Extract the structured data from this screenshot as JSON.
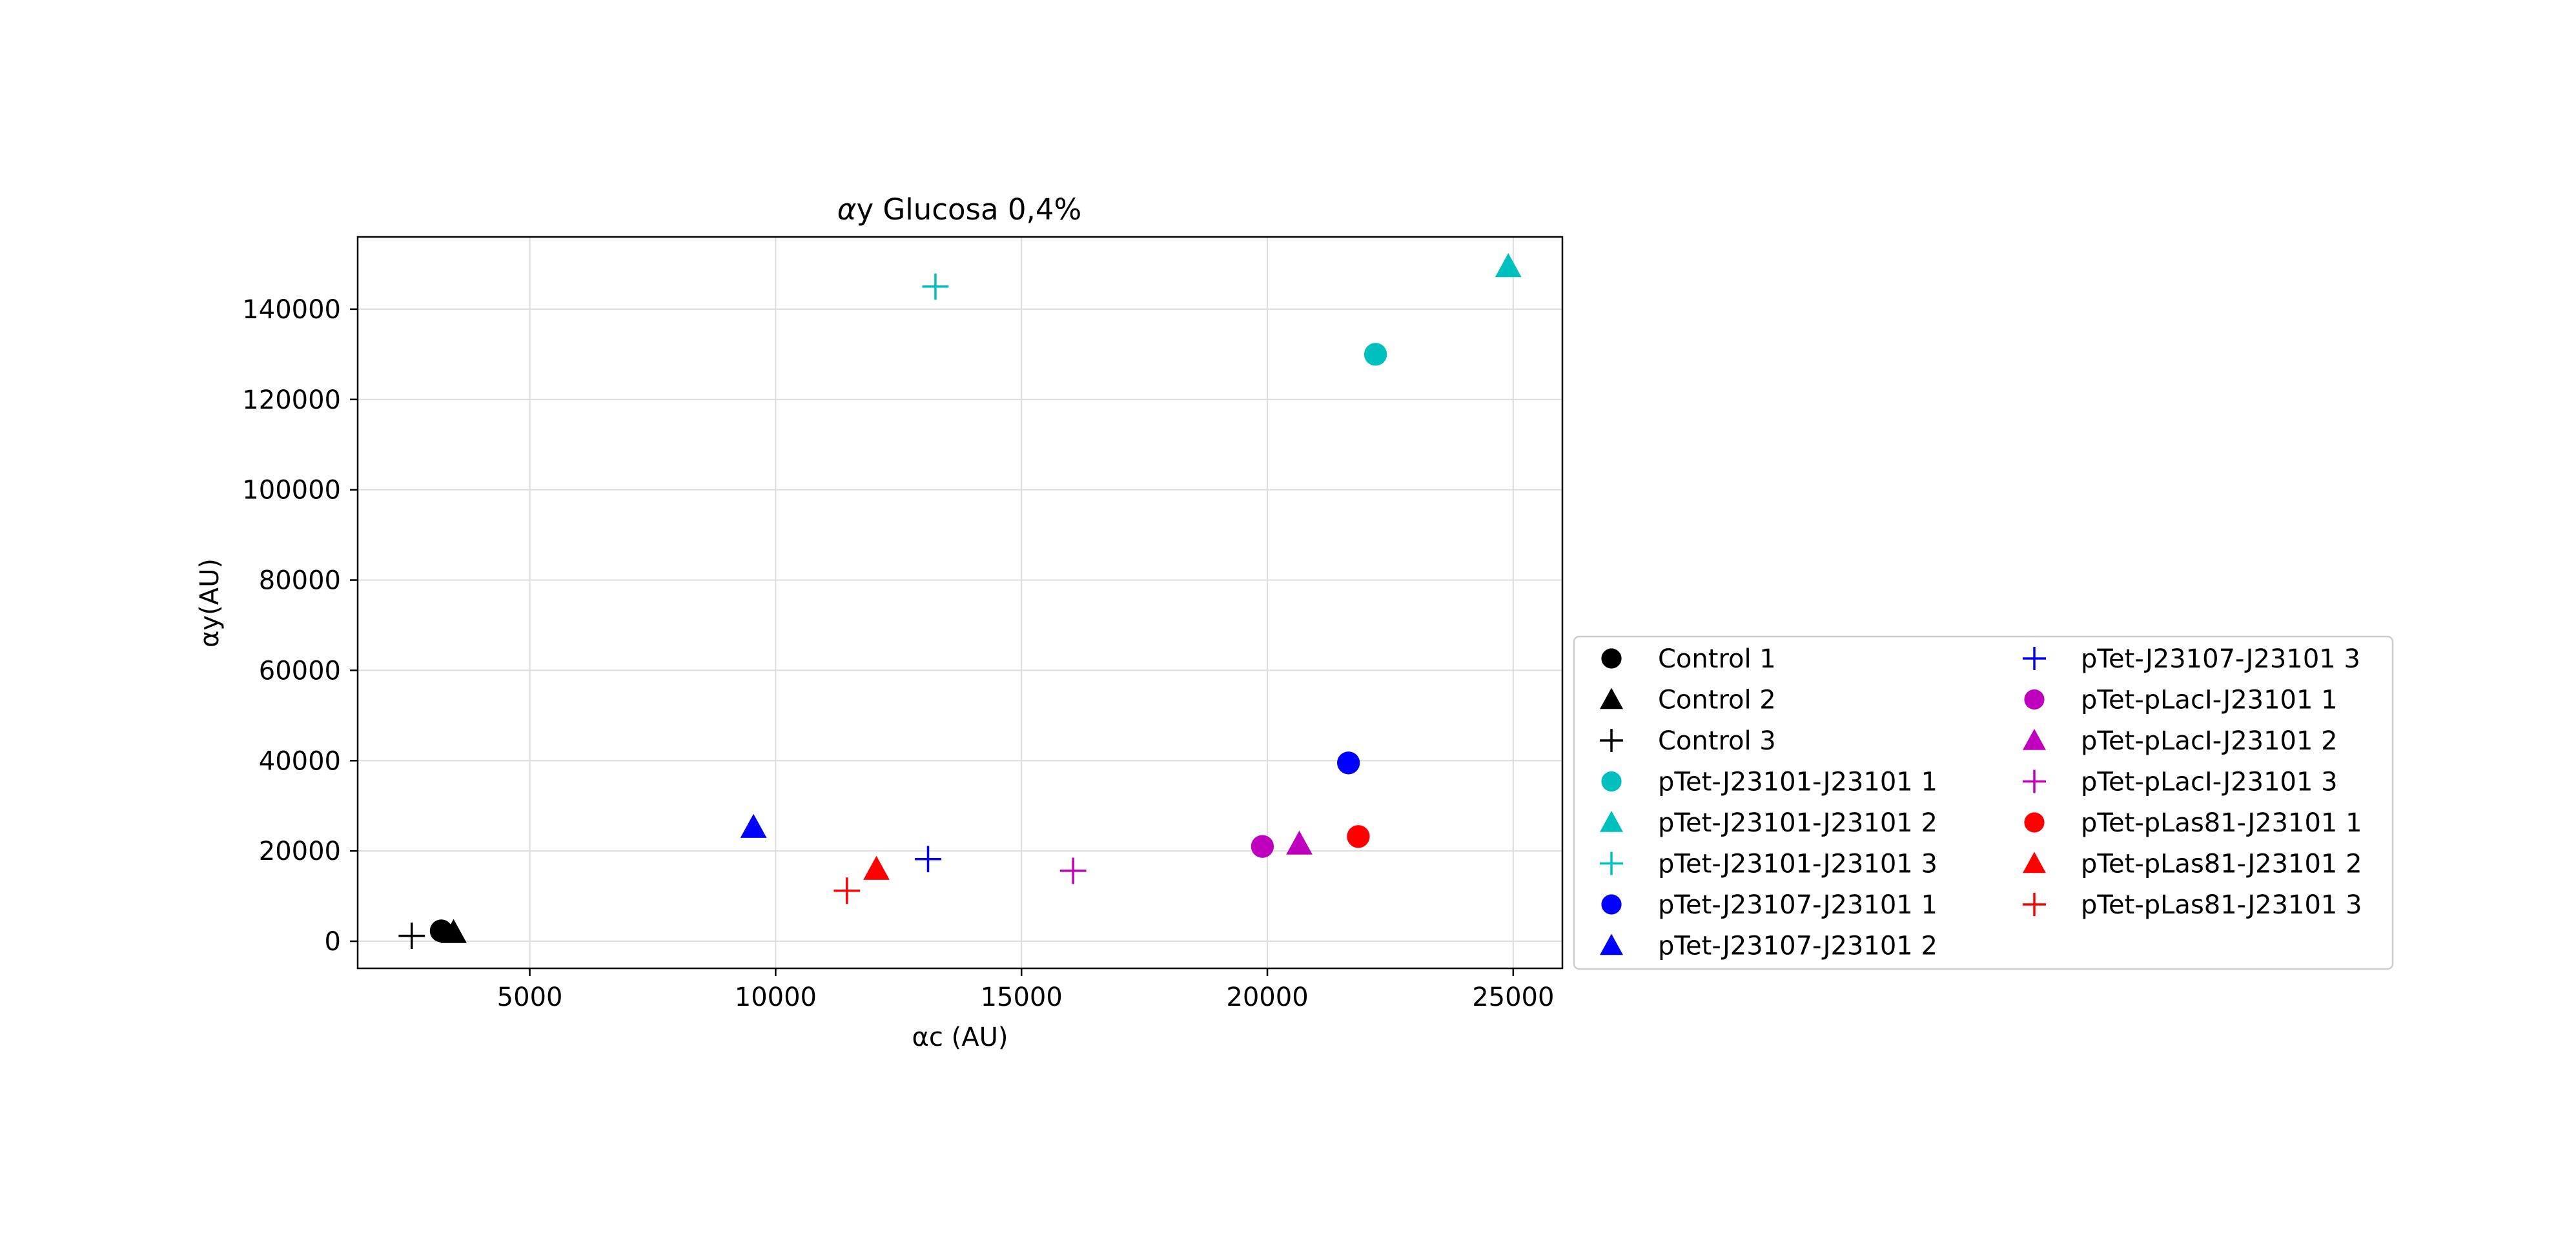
{
  "chart_data": {
    "type": "scatter",
    "title_main": "y Glucosa 0,4%",
    "title_prefix": "α",
    "xlabel": "αc (AU)",
    "ylabel": "αy(AU)",
    "xlim": [
      1500,
      26000
    ],
    "ylim": [
      -6000,
      156000
    ],
    "xticks": [
      5000,
      10000,
      15000,
      20000,
      25000
    ],
    "yticks": [
      0,
      20000,
      40000,
      60000,
      80000,
      100000,
      120000,
      140000
    ],
    "grid": true,
    "legend_placement": "outside-right",
    "series": [
      {
        "name": "Control 1",
        "color": "#000000",
        "marker": "circle",
        "x": 3200,
        "y": 2300
      },
      {
        "name": "Control 2",
        "color": "#000000",
        "marker": "triangle",
        "x": 3450,
        "y": 2000
      },
      {
        "name": "Control 3",
        "color": "#000000",
        "marker": "plus",
        "x": 2600,
        "y": 1200
      },
      {
        "name": "pTet-J23101-J23101 1",
        "color": "#00bfbf",
        "marker": "circle",
        "x": 22200,
        "y": 130000
      },
      {
        "name": "pTet-J23101-J23101 2",
        "color": "#00bfbf",
        "marker": "triangle",
        "x": 24900,
        "y": 149500
      },
      {
        "name": "pTet-J23101-J23101 3",
        "color": "#00bfbf",
        "marker": "plus",
        "x": 13250,
        "y": 145000
      },
      {
        "name": "pTet-J23107-J23101 1",
        "color": "#0000ff",
        "marker": "circle",
        "x": 21650,
        "y": 39500
      },
      {
        "name": "pTet-J23107-J23101 2",
        "color": "#0000ff",
        "marker": "triangle",
        "x": 9550,
        "y": 25300
      },
      {
        "name": "pTet-J23107-J23101 3",
        "color": "#0000ff",
        "marker": "plus",
        "x": 13100,
        "y": 18200
      },
      {
        "name": "pTet-pLacI-J23101 1",
        "color": "#bf00bf",
        "marker": "circle",
        "x": 19900,
        "y": 21000
      },
      {
        "name": "pTet-pLacI-J23101 2",
        "color": "#bf00bf",
        "marker": "triangle",
        "x": 20650,
        "y": 21600
      },
      {
        "name": "pTet-pLacI-J23101 3",
        "color": "#bf00bf",
        "marker": "plus",
        "x": 16050,
        "y": 15600
      },
      {
        "name": "pTet-pLas81-J23101 1",
        "color": "#ff0000",
        "marker": "circle",
        "x": 21850,
        "y": 23200
      },
      {
        "name": "pTet-pLas81-J23101 2",
        "color": "#ff0000",
        "marker": "triangle",
        "x": 12050,
        "y": 16000
      },
      {
        "name": "pTet-pLas81-J23101 3",
        "color": "#ff0000",
        "marker": "plus",
        "x": 11450,
        "y": 11200
      }
    ]
  }
}
